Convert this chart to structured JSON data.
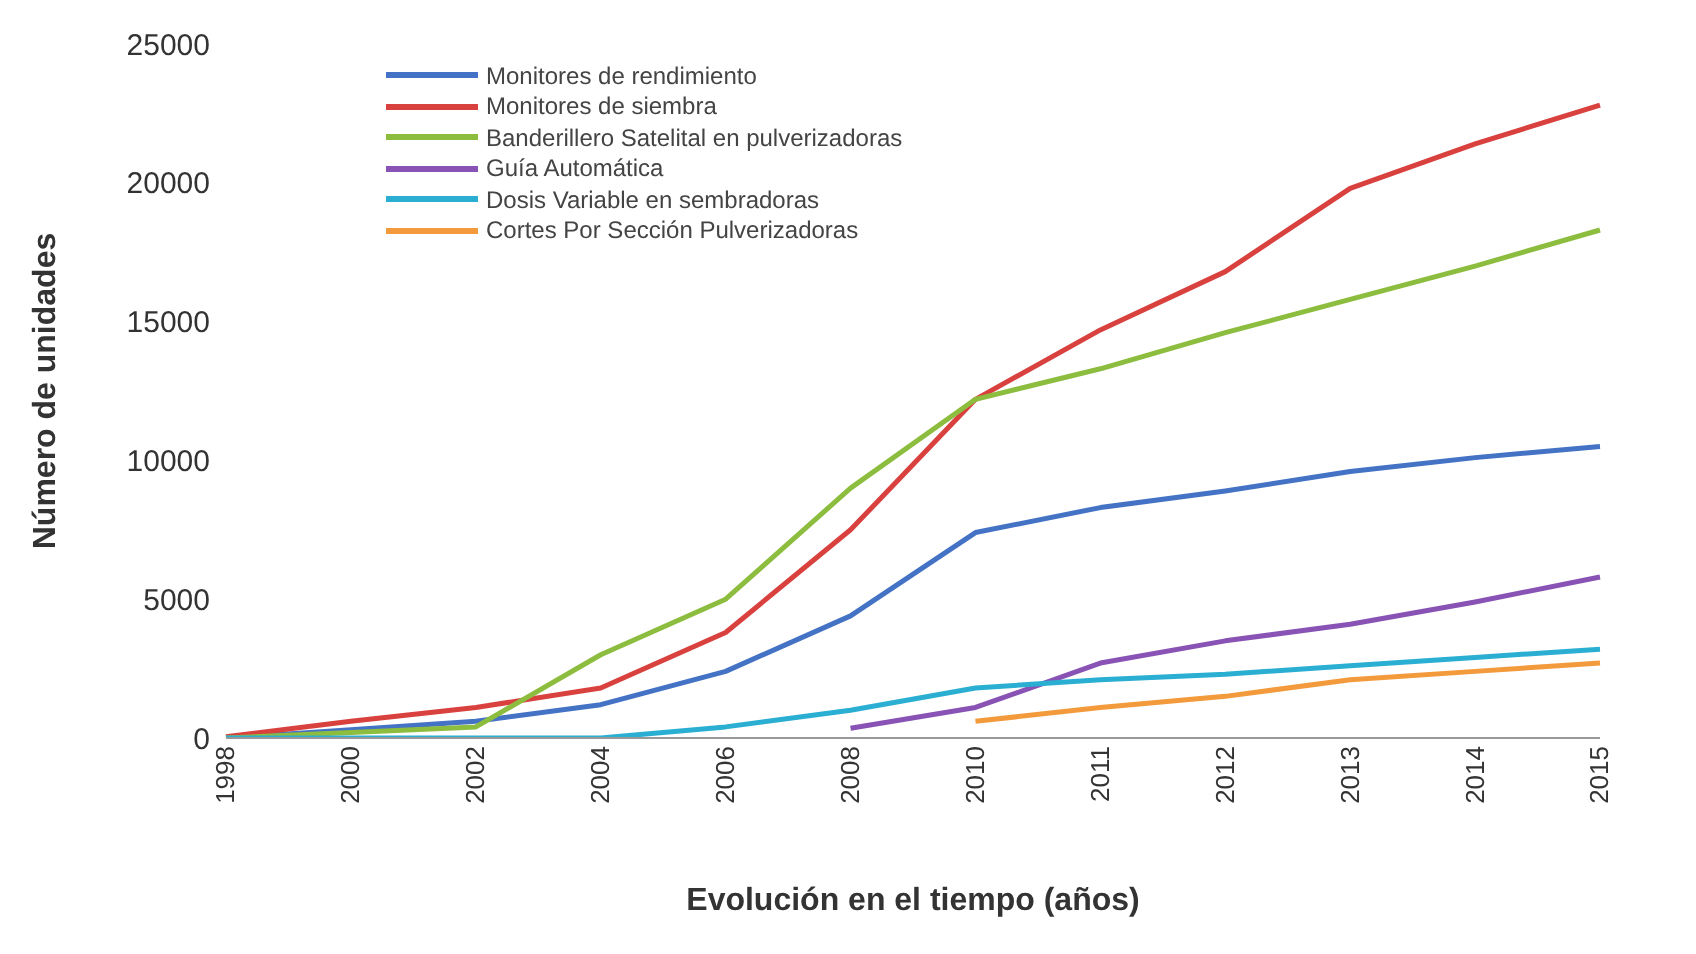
{
  "chart_data": {
    "type": "line",
    "xlabel": "Evolución en el tiempo (años)",
    "ylabel": "Número de unidades",
    "categories": [
      "1998",
      "2000",
      "2002",
      "2004",
      "2006",
      "2008",
      "2010",
      "2011",
      "2012",
      "2013",
      "2014",
      "2015"
    ],
    "series": [
      {
        "name": "Monitores de rendimiento",
        "color": "#4472c4",
        "values": [
          0,
          300,
          600,
          1200,
          2400,
          4400,
          7400,
          8300,
          8900,
          9600,
          10100,
          10500
        ]
      },
      {
        "name": "Monitores de siembra",
        "color": "#d9413f",
        "values": [
          50,
          600,
          1100,
          1800,
          3800,
          7500,
          12200,
          14700,
          16800,
          19800,
          21400,
          22800
        ]
      },
      {
        "name": "Banderillero Satelital en pulverizadoras",
        "color": "#8cbd3f",
        "values": [
          0,
          200,
          400,
          3000,
          5000,
          9000,
          12200,
          13300,
          14600,
          15800,
          17000,
          18300
        ]
      },
      {
        "name": "Guía Automática",
        "color": "#8853b4",
        "values": [
          null,
          null,
          null,
          null,
          null,
          350,
          1100,
          2700,
          3500,
          4100,
          4900,
          5800
        ]
      },
      {
        "name": "Dosis Variable en sembradoras",
        "color": "#2aaed2",
        "values": [
          0,
          0,
          0,
          0,
          400,
          1000,
          1800,
          2100,
          2300,
          2600,
          2900,
          3200
        ]
      },
      {
        "name": "Cortes Por Sección Pulverizadoras",
        "color": "#f39a3c",
        "values": [
          null,
          null,
          null,
          null,
          null,
          null,
          600,
          1100,
          1500,
          2100,
          2400,
          2700
        ]
      }
    ],
    "ylim": [
      0,
      25000
    ],
    "yticks": [
      0,
      5000,
      10000,
      15000,
      20000,
      25000
    ],
    "grid": false,
    "legend": "top left",
    "marker": "none",
    "line_style": "solid"
  }
}
